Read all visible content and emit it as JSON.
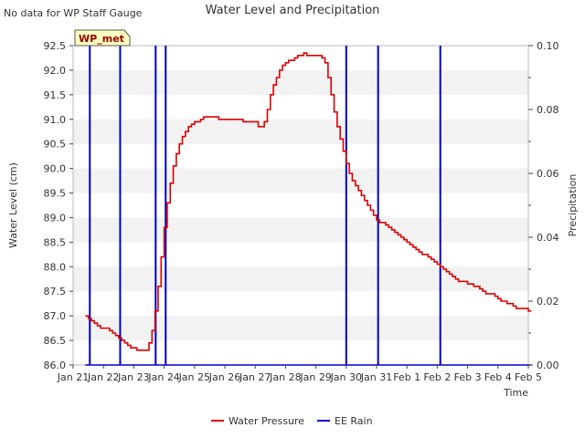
{
  "chart_data": {
    "type": "line",
    "title": "Water Level and Precipitation",
    "corner_note": "No data for WP Staff Gauge",
    "site_label": "WP_met",
    "xlabel": "Time",
    "ylabel_left": "Water Level (cm)",
    "ylabel_right": "Precipitation",
    "x_ticks": [
      "Jan 21",
      "Jan 22",
      "Jan 23",
      "Jan 24",
      "Jan 25",
      "Jan 26",
      "Jan 27",
      "Jan 28",
      "Jan 29",
      "Jan 30",
      "Jan 31",
      "Feb 1",
      "Feb 2",
      "Feb 3",
      "Feb 4",
      "Feb 5"
    ],
    "xlim_days": [
      0,
      15
    ],
    "ylim_left": [
      86.0,
      92.5
    ],
    "y_ticks_left": [
      "86.0",
      "86.5",
      "87.0",
      "87.5",
      "88.0",
      "88.5",
      "89.0",
      "89.5",
      "90.0",
      "90.5",
      "91.0",
      "91.5",
      "92.0",
      "92.5"
    ],
    "ylim_right": [
      0.0,
      0.1
    ],
    "y_ticks_right": [
      "0.00",
      "0.02",
      "0.04",
      "0.06",
      "0.08",
      "0.10"
    ],
    "grid": "horizontal bands",
    "legend": "bottom-center",
    "series": [
      {
        "name": "Water Pressure",
        "color": "#dd0000",
        "axis": "left",
        "points": [
          [
            0.4,
            87.0
          ],
          [
            0.5,
            86.95
          ],
          [
            0.6,
            86.9
          ],
          [
            0.7,
            86.85
          ],
          [
            0.8,
            86.8
          ],
          [
            0.9,
            86.75
          ],
          [
            1.2,
            86.7
          ],
          [
            1.3,
            86.65
          ],
          [
            1.4,
            86.6
          ],
          [
            1.5,
            86.55
          ],
          [
            1.6,
            86.5
          ],
          [
            1.7,
            86.45
          ],
          [
            1.8,
            86.4
          ],
          [
            1.9,
            86.35
          ],
          [
            2.1,
            86.3
          ],
          [
            2.4,
            86.3
          ],
          [
            2.5,
            86.45
          ],
          [
            2.6,
            86.7
          ],
          [
            2.7,
            87.1
          ],
          [
            2.8,
            87.6
          ],
          [
            2.9,
            88.2
          ],
          [
            3.0,
            88.8
          ],
          [
            3.1,
            89.3
          ],
          [
            3.2,
            89.7
          ],
          [
            3.3,
            90.05
          ],
          [
            3.4,
            90.3
          ],
          [
            3.5,
            90.5
          ],
          [
            3.6,
            90.65
          ],
          [
            3.7,
            90.75
          ],
          [
            3.8,
            90.85
          ],
          [
            3.9,
            90.9
          ],
          [
            4.0,
            90.95
          ],
          [
            4.2,
            91.0
          ],
          [
            4.3,
            91.05
          ],
          [
            4.7,
            91.05
          ],
          [
            4.8,
            91.0
          ],
          [
            5.5,
            91.0
          ],
          [
            5.6,
            90.95
          ],
          [
            6.0,
            90.95
          ],
          [
            6.1,
            90.85
          ],
          [
            6.3,
            90.95
          ],
          [
            6.4,
            91.2
          ],
          [
            6.5,
            91.5
          ],
          [
            6.6,
            91.7
          ],
          [
            6.7,
            91.85
          ],
          [
            6.8,
            92.0
          ],
          [
            6.9,
            92.1
          ],
          [
            7.0,
            92.15
          ],
          [
            7.1,
            92.2
          ],
          [
            7.3,
            92.25
          ],
          [
            7.4,
            92.3
          ],
          [
            7.6,
            92.35
          ],
          [
            7.7,
            92.3
          ],
          [
            8.1,
            92.3
          ],
          [
            8.2,
            92.25
          ],
          [
            8.3,
            92.15
          ],
          [
            8.4,
            91.85
          ],
          [
            8.5,
            91.5
          ],
          [
            8.6,
            91.15
          ],
          [
            8.7,
            90.85
          ],
          [
            8.8,
            90.6
          ],
          [
            8.9,
            90.35
          ],
          [
            9.0,
            90.1
          ],
          [
            9.1,
            89.9
          ],
          [
            9.2,
            89.75
          ],
          [
            9.3,
            89.65
          ],
          [
            9.4,
            89.55
          ],
          [
            9.5,
            89.45
          ],
          [
            9.6,
            89.35
          ],
          [
            9.7,
            89.25
          ],
          [
            9.8,
            89.15
          ],
          [
            9.9,
            89.05
          ],
          [
            10.0,
            88.95
          ],
          [
            10.1,
            88.9
          ],
          [
            10.3,
            88.85
          ],
          [
            10.4,
            88.8
          ],
          [
            10.5,
            88.75
          ],
          [
            10.6,
            88.7
          ],
          [
            10.7,
            88.65
          ],
          [
            10.8,
            88.6
          ],
          [
            10.9,
            88.55
          ],
          [
            11.0,
            88.5
          ],
          [
            11.1,
            88.45
          ],
          [
            11.2,
            88.4
          ],
          [
            11.3,
            88.35
          ],
          [
            11.4,
            88.3
          ],
          [
            11.5,
            88.25
          ],
          [
            11.7,
            88.2
          ],
          [
            11.8,
            88.15
          ],
          [
            11.9,
            88.1
          ],
          [
            12.0,
            88.05
          ],
          [
            12.1,
            88.0
          ],
          [
            12.2,
            87.95
          ],
          [
            12.3,
            87.9
          ],
          [
            12.4,
            87.85
          ],
          [
            12.5,
            87.8
          ],
          [
            12.6,
            87.75
          ],
          [
            12.7,
            87.7
          ],
          [
            13.0,
            87.65
          ],
          [
            13.2,
            87.6
          ],
          [
            13.4,
            87.55
          ],
          [
            13.5,
            87.5
          ],
          [
            13.6,
            87.45
          ],
          [
            13.9,
            87.4
          ],
          [
            14.0,
            87.35
          ],
          [
            14.1,
            87.3
          ],
          [
            14.3,
            87.25
          ],
          [
            14.5,
            87.2
          ],
          [
            14.6,
            87.15
          ],
          [
            14.9,
            87.15
          ],
          [
            15.0,
            87.1
          ],
          [
            15.1,
            87.1
          ]
        ]
      },
      {
        "name": "EE Rain",
        "color": "#0000cc",
        "axis": "right",
        "points": [
          [
            0.55,
            0.1
          ],
          [
            1.55,
            0.1
          ],
          [
            2.72,
            0.1
          ],
          [
            3.05,
            0.1
          ],
          [
            9.0,
            0.1
          ],
          [
            10.05,
            0.1
          ],
          [
            12.1,
            0.1
          ]
        ],
        "baseline_span_days": [
          0.4,
          15.1
        ]
      }
    ]
  }
}
